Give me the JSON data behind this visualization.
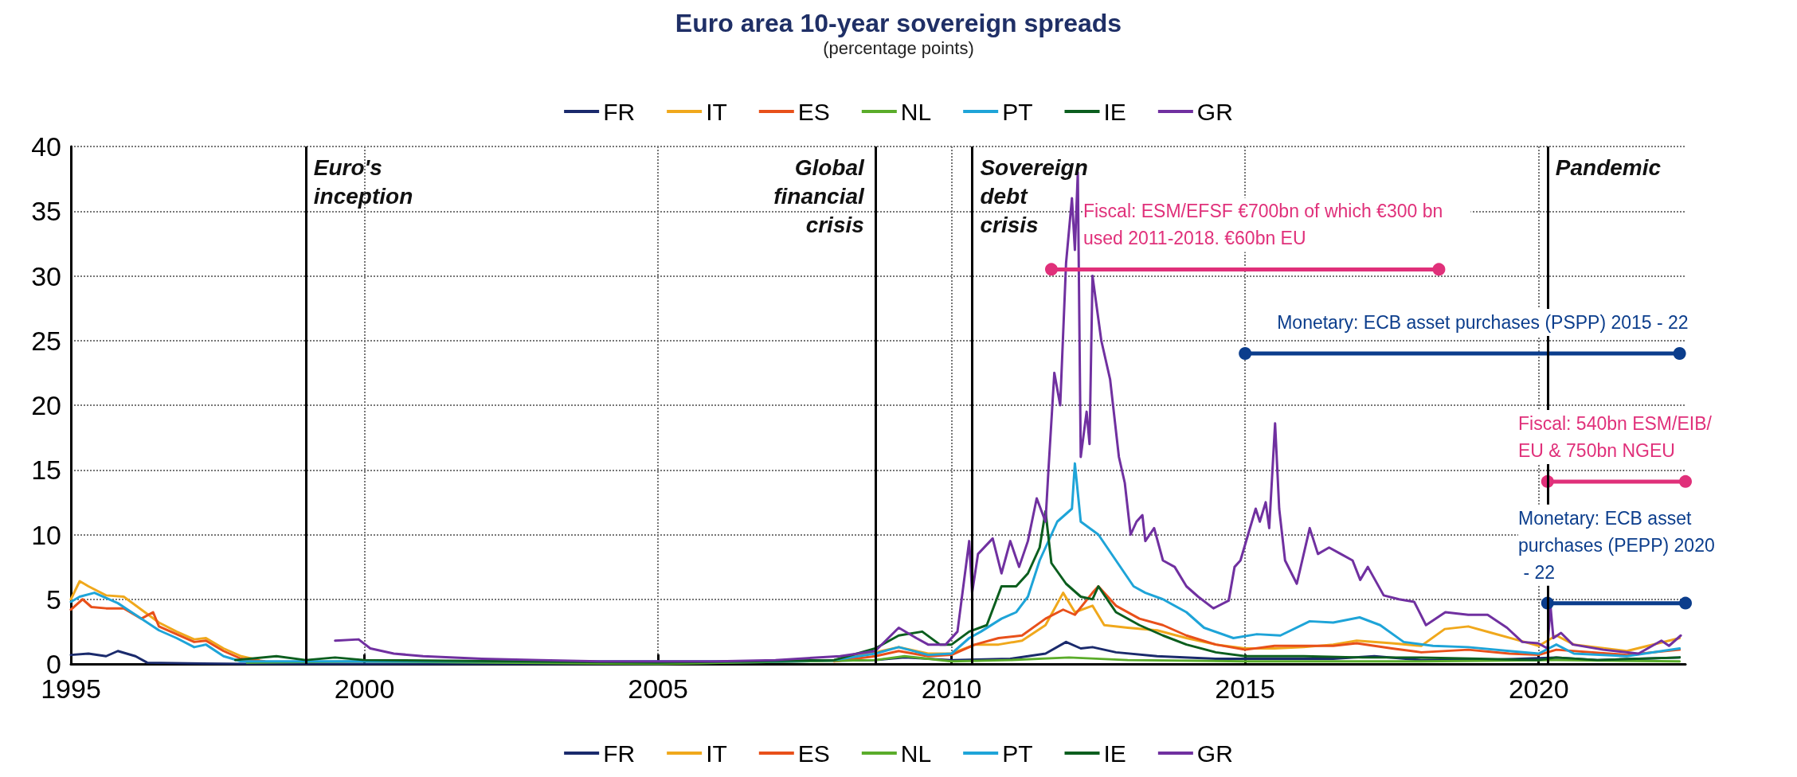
{
  "chart_data": {
    "type": "line",
    "title": "Euro area 10-year sovereign spreads",
    "subtitle": "(percentage points)",
    "xlim": [
      1995,
      2022.5
    ],
    "xticks": [
      1995,
      2000,
      2005,
      2010,
      2015,
      2020
    ],
    "ylim": [
      0,
      40
    ],
    "yticks": [
      0,
      5,
      10,
      15,
      20,
      25,
      30,
      35,
      40
    ],
    "grid": true,
    "legend": [
      "top",
      "bottom"
    ],
    "marker": "none",
    "line_style": "solid",
    "ref_lines": [
      {
        "axis": "x",
        "value": 1999.0,
        "label": "Euro's inception",
        "color": "#000000"
      },
      {
        "axis": "x",
        "value": 2008.7,
        "label": "Global financial crisis",
        "color": "#000000"
      },
      {
        "axis": "x",
        "value": 2010.35,
        "label": "Sovereign debt crisis",
        "color": "#000000"
      },
      {
        "axis": "x",
        "value": 2020.15,
        "label": "Pandemic",
        "color": "#000000"
      }
    ],
    "series": [
      {
        "name": "FR",
        "color": "#1a2a6c",
        "x": [
          1995,
          1995.3,
          1995.6,
          1995.8,
          1996.1,
          1996.3,
          1997,
          1998,
          2005,
          2008.7,
          2009.2,
          2010,
          2011,
          2011.6,
          2011.95,
          2012.2,
          2012.4,
          2012.8,
          2013.5,
          2014.5,
          2015.5,
          2016.5,
          2017.2,
          2018,
          2019,
          2020.3,
          2021,
          2022.4
        ],
        "values": [
          0.7,
          0.8,
          0.6,
          1.0,
          0.6,
          0.1,
          0.05,
          0,
          0,
          0.3,
          0.5,
          0.3,
          0.4,
          0.8,
          1.7,
          1.2,
          1.3,
          0.9,
          0.6,
          0.4,
          0.4,
          0.4,
          0.6,
          0.3,
          0.3,
          0.5,
          0.3,
          0.5
        ]
      },
      {
        "name": "IT",
        "color": "#f0a81c",
        "x": [
          1995,
          1995.15,
          1995.3,
          1995.6,
          1995.9,
          1996.2,
          1996.5,
          1996.8,
          1997.1,
          1997.3,
          1997.6,
          1997.9,
          1998.2,
          1999,
          2005,
          2008,
          2008.7,
          2009.1,
          2009.6,
          2010,
          2010.4,
          2010.8,
          2011.2,
          2011.6,
          2011.9,
          2012.1,
          2012.4,
          2012.6,
          2013,
          2013.5,
          2014,
          2014.5,
          2015,
          2015.5,
          2016,
          2016.5,
          2016.9,
          2017.5,
          2018,
          2018.4,
          2018.8,
          2019.2,
          2019.6,
          2020,
          2020.3,
          2020.6,
          2021.5,
          2022.4
        ],
        "values": [
          5.0,
          6.4,
          6.0,
          5.3,
          5.2,
          4.2,
          3.2,
          2.5,
          1.9,
          2.0,
          1.2,
          0.6,
          0.3,
          null,
          null,
          0.3,
          0.9,
          1.3,
          0.8,
          0.8,
          1.5,
          1.5,
          1.8,
          3.0,
          5.5,
          4.0,
          4.5,
          3.0,
          2.8,
          2.6,
          2.0,
          1.5,
          1.2,
          1.2,
          1.3,
          1.5,
          1.8,
          1.6,
          1.4,
          2.7,
          2.9,
          2.4,
          1.9,
          1.4,
          2.2,
          1.5,
          1.0,
          2.0
        ]
      },
      {
        "name": "ES",
        "color": "#e8501a",
        "x": [
          1995,
          1995.2,
          1995.35,
          1995.6,
          1995.9,
          1996.2,
          1996.4,
          1996.5,
          1996.8,
          1997.1,
          1997.3,
          1997.6,
          1997.9,
          1998.3,
          2005,
          2008,
          2008.7,
          2009.1,
          2009.6,
          2010,
          2010.4,
          2010.8,
          2011.2,
          2011.6,
          2011.9,
          2012.1,
          2012.4,
          2012.5,
          2012.8,
          2013.2,
          2013.6,
          2014,
          2014.5,
          2015,
          2015.5,
          2016,
          2016.5,
          2016.9,
          2017.5,
          2018,
          2018.8,
          2019.5,
          2020,
          2020.3,
          2021.5,
          2022.4
        ],
        "values": [
          4.2,
          5.0,
          4.4,
          4.3,
          4.3,
          3.5,
          4.0,
          2.9,
          2.3,
          1.7,
          1.8,
          1.0,
          0.4,
          0.2,
          null,
          0.2,
          0.6,
          1.0,
          0.6,
          0.7,
          1.5,
          2.0,
          2.2,
          3.5,
          4.2,
          3.8,
          5.5,
          6.0,
          4.5,
          3.5,
          3.0,
          2.2,
          1.5,
          1.1,
          1.4,
          1.4,
          1.4,
          1.6,
          1.2,
          0.9,
          1.1,
          0.8,
          0.7,
          1.1,
          0.7,
          1.1
        ]
      },
      {
        "name": "NL",
        "color": "#5aac2a",
        "x": [
          1998,
          2000,
          2005,
          2008.7,
          2009.2,
          2010,
          2011,
          2012,
          2013,
          2015,
          2018,
          2020.3,
          2022.4
        ],
        "values": [
          0.1,
          0.2,
          0,
          0.3,
          0.6,
          0.2,
          0.3,
          0.5,
          0.3,
          0.2,
          0.2,
          0.3,
          0.2
        ]
      },
      {
        "name": "PT",
        "color": "#1ea4d8",
        "x": [
          1995,
          1995.15,
          1995.4,
          1995.8,
          1996.1,
          1996.5,
          1996.8,
          1997.1,
          1997.3,
          1997.6,
          1997.9,
          2007,
          2008,
          2008.7,
          2009.1,
          2009.6,
          2010,
          2010.3,
          2010.5,
          2010.85,
          2011.1,
          2011.3,
          2011.5,
          2011.8,
          2012.05,
          2012.1,
          2012.2,
          2012.5,
          2012.8,
          2013.1,
          2013.3,
          2013.6,
          2014,
          2014.3,
          2014.8,
          2015.2,
          2015.6,
          2016.1,
          2016.5,
          2016.95,
          2017.3,
          2017.7,
          2018.2,
          2018.8,
          2019.5,
          2020,
          2020.3,
          2020.6,
          2021.5,
          2022.4
        ],
        "values": [
          4.8,
          5.2,
          5.5,
          4.7,
          3.8,
          2.6,
          2.0,
          1.3,
          1.5,
          0.6,
          0.2,
          0.2,
          0.3,
          0.8,
          1.3,
          0.7,
          0.8,
          2.0,
          2.5,
          3.5,
          4,
          5.2,
          8,
          11,
          12,
          15.5,
          11,
          10,
          8,
          6,
          5.5,
          5,
          4,
          2.8,
          2.0,
          2.3,
          2.2,
          3.3,
          3.2,
          3.6,
          3.0,
          1.7,
          1.4,
          1.3,
          1.0,
          0.8,
          1.5,
          0.8,
          0.6,
          1.2
        ]
      },
      {
        "name": "IE",
        "color": "#0b5e1e",
        "x": [
          1997.8,
          1998.5,
          1999,
          1999.5,
          2000,
          2005,
          2008,
          2008.7,
          2009.1,
          2009.5,
          2009.8,
          2010,
          2010.3,
          2010.6,
          2010.85,
          2011.1,
          2011.3,
          2011.5,
          2011.6,
          2011.7,
          2011.95,
          2012.2,
          2012.4,
          2012.5,
          2012.8,
          2013.2,
          2013.6,
          2014,
          2014.5,
          2015,
          2016,
          2017,
          2018,
          2019,
          2020,
          2020.3,
          2021,
          2022.4
        ],
        "values": [
          0.3,
          0.6,
          0.3,
          0.5,
          0.3,
          0.1,
          0.3,
          1.2,
          2.2,
          2.5,
          1.5,
          1.5,
          2.5,
          3.0,
          6.0,
          6.0,
          7.0,
          9.0,
          11.8,
          7.8,
          6.2,
          5.2,
          5.0,
          6.0,
          4.0,
          3.0,
          2.2,
          1.5,
          0.9,
          0.6,
          0.6,
          0.5,
          0.5,
          0.4,
          0.3,
          0.5,
          0.3,
          0.5
        ]
      },
      {
        "name": "GR",
        "color": "#7030a0",
        "x": [
          1999.5,
          1999.9,
          2000.1,
          2000.5,
          2001,
          2002,
          2003,
          2004,
          2005,
          2006,
          2007,
          2008.1,
          2008.7,
          2009.1,
          2009.4,
          2009.6,
          2009.9,
          2010.1,
          2010.3,
          2010.35,
          2010.45,
          2010.7,
          2010.85,
          2011,
          2011.15,
          2011.3,
          2011.45,
          2011.6,
          2011.65,
          2011.75,
          2011.85,
          2011.95,
          2012.05,
          2012.1,
          2012.15,
          2012.2,
          2012.3,
          2012.35,
          2012.4,
          2012.55,
          2012.7,
          2012.85,
          2012.95,
          2013.05,
          2013.15,
          2013.25,
          2013.3,
          2013.45,
          2013.6,
          2013.8,
          2014,
          2014.2,
          2014.46,
          2014.72,
          2014.82,
          2014.92,
          2015.05,
          2015.18,
          2015.25,
          2015.35,
          2015.41,
          2015.51,
          2015.58,
          2015.68,
          2015.88,
          2016.1,
          2016.24,
          2016.43,
          2016.63,
          2016.83,
          2016.96,
          2017.09,
          2017.36,
          2017.62,
          2017.88,
          2018.08,
          2018.41,
          2018.8,
          2019.13,
          2019.46,
          2019.72,
          2019.99,
          2020.15,
          2020.2,
          2020.25,
          2020.38,
          2020.58,
          2021.1,
          2021.7,
          2022.09,
          2022.22,
          2022.42
        ],
        "values": [
          1.8,
          1.9,
          1.2,
          0.8,
          0.6,
          0.4,
          0.3,
          0.2,
          0.2,
          0.2,
          0.3,
          0.6,
          1.0,
          2.8,
          2.0,
          1.5,
          1.5,
          2.5,
          9.5,
          5.5,
          8.5,
          9.7,
          7.0,
          9.5,
          7.5,
          9.5,
          12.8,
          11,
          15,
          22.5,
          20,
          31,
          36,
          32,
          38,
          16,
          19.5,
          17,
          30,
          25,
          22,
          16,
          14,
          10,
          11,
          11.5,
          9.5,
          10.5,
          8,
          7.5,
          6,
          5.2,
          4.3,
          4.9,
          7.5,
          8,
          10,
          12,
          11,
          12.5,
          10.5,
          18.6,
          12,
          8,
          6.2,
          10.5,
          8.5,
          9,
          8.5,
          8,
          6.5,
          7.5,
          5.3,
          5,
          4.8,
          3,
          4,
          3.8,
          3.8,
          2.8,
          1.7,
          1.6,
          1.2,
          4.5,
          2.0,
          2.4,
          1.5,
          1.1,
          0.8,
          1.8,
          1.4,
          2.2
        ]
      },
      {
        "name": "Fiscal: ESM/EFSF €700bn of which €300 bn used 2011-2018. €60bn EU",
        "color": "#e0307a",
        "marker": "circle",
        "x": [
          2011.7,
          2018.3
        ],
        "values": [
          30.5,
          30.5
        ]
      },
      {
        "name": "Monetary: ECB asset purchases (PSPP) 2015 - 22",
        "color": "#0b3d8c",
        "marker": "circle",
        "x": [
          2015,
          2022.4
        ],
        "values": [
          24,
          24
        ]
      },
      {
        "name": "Fiscal: 540bn ESM/EIB/ EU & 750bn NGEU",
        "color": "#e0307a",
        "marker": "circle",
        "x": [
          2020.15,
          2022.5
        ],
        "values": [
          14.1,
          14.1
        ]
      },
      {
        "name": "Monetary: ECB asset purchases (PEPP) 2020 - 22",
        "color": "#0b3d8c",
        "marker": "circle",
        "x": [
          2020.15,
          2022.5
        ],
        "values": [
          4.7,
          4.7
        ]
      }
    ]
  }
}
